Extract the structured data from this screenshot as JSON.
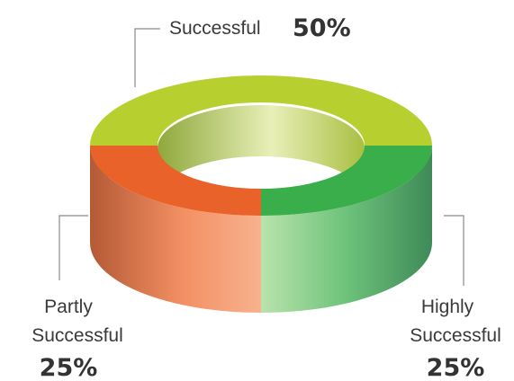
{
  "chart_data": {
    "type": "pie",
    "variant": "3d-donut",
    "title": "",
    "slices": [
      {
        "label_lines": [
          "Successful"
        ],
        "value": 50,
        "value_label": "50%",
        "color": "#b7cf2f"
      },
      {
        "label_lines": [
          "Highly",
          "Successful"
        ],
        "value": 25,
        "value_label": "25%",
        "color": "#3aae4a"
      },
      {
        "label_lines": [
          "Partly",
          "Successful"
        ],
        "value": 25,
        "value_label": "25%",
        "color": "#e9622a"
      }
    ],
    "legend": "none"
  }
}
